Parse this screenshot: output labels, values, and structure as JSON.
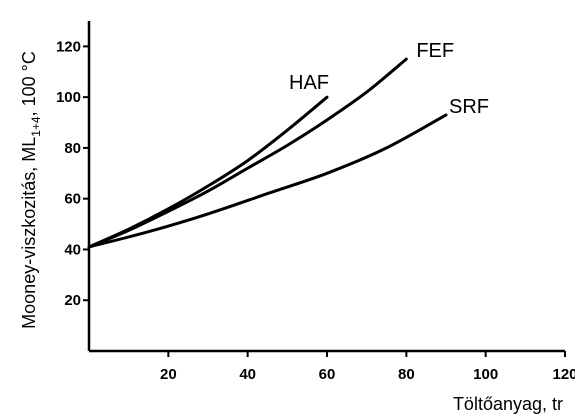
{
  "chart_data": {
    "type": "line",
    "title": "",
    "xlabel": "Töltőanyag, tr",
    "ylabel_parts": {
      "main": "Mooney-viszkozitás, ML",
      "sub": "1+4",
      "tail": ",  100 °C"
    },
    "xlim": [
      0,
      120
    ],
    "ylim": [
      0,
      130
    ],
    "xticks": [
      20,
      40,
      60,
      80,
      100,
      120
    ],
    "yticks": [
      20,
      40,
      60,
      80,
      100,
      120
    ],
    "grid": false,
    "legend": "none",
    "series": [
      {
        "name": "HAF",
        "x": [
          0,
          10,
          20,
          30,
          40,
          50,
          60
        ],
        "y": [
          41,
          48,
          56,
          65,
          75,
          87,
          100
        ]
      },
      {
        "name": "FEF",
        "x": [
          0,
          10,
          20,
          30,
          40,
          50,
          60,
          70,
          80
        ],
        "y": [
          41,
          47.5,
          55,
          63,
          72,
          81,
          91,
          102,
          115
        ]
      },
      {
        "name": "SRF",
        "x": [
          0,
          15,
          30,
          45,
          60,
          75,
          90
        ],
        "y": [
          41,
          47,
          54,
          62,
          70,
          80,
          93
        ]
      }
    ]
  }
}
